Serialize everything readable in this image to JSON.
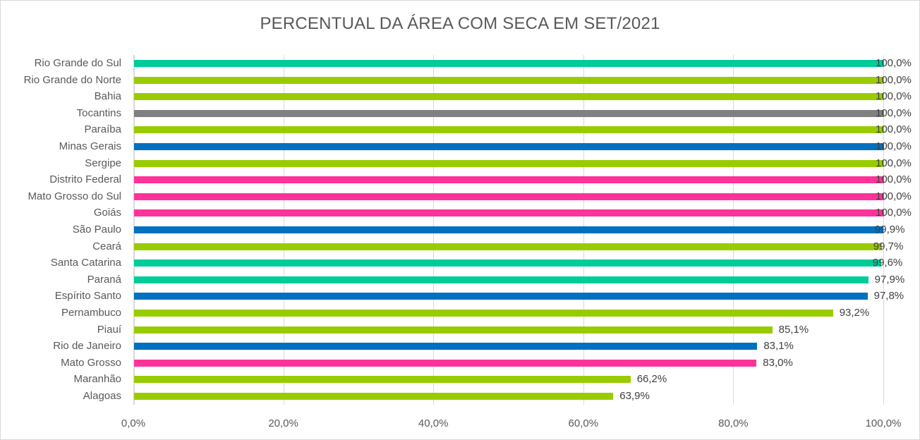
{
  "chart_data": {
    "type": "bar",
    "orientation": "horizontal",
    "title": "PERCENTUAL DA ÁREA COM SECA EM SET/2021",
    "xlabel": "",
    "ylabel": "",
    "xlim": [
      0,
      100
    ],
    "grid": true,
    "legend": null,
    "x_ticks": [
      "0,0%",
      "20,0%",
      "40,0%",
      "60,0%",
      "80,0%",
      "100,0%"
    ],
    "categories": [
      "Rio Grande do Sul",
      "Rio Grande do Norte",
      "Bahia",
      "Tocantins",
      "Paraíba",
      "Minas Gerais",
      "Sergipe",
      "Distrito Federal",
      "Mato Grosso do Sul",
      "Goiás",
      "São Paulo",
      "Ceará",
      "Santa Catarina",
      "Paraná",
      "Espírito Santo",
      "Pernambuco",
      "Piauí",
      "Rio de Janeiro",
      "Mato Grosso",
      "Maranhão",
      "Alagoas"
    ],
    "values": [
      100.0,
      100.0,
      100.0,
      100.0,
      100.0,
      100.0,
      100.0,
      100.0,
      100.0,
      100.0,
      99.9,
      99.7,
      99.6,
      97.9,
      97.8,
      93.2,
      85.1,
      83.1,
      83.0,
      66.2,
      63.9
    ],
    "value_labels": [
      "100,0%",
      "100,0%",
      "100,0%",
      "100,0%",
      "100,0%",
      "100,0%",
      "100,0%",
      "100,0%",
      "100,0%",
      "100,0%",
      "99,9%",
      "99,7%",
      "99,6%",
      "97,9%",
      "97,8%",
      "93,2%",
      "85,1%",
      "83,1%",
      "83,0%",
      "66,2%",
      "63,9%"
    ],
    "bar_colors": [
      "#00cc99",
      "#99cc00",
      "#99cc00",
      "#808080",
      "#99cc00",
      "#0070c0",
      "#99cc00",
      "#ff3399",
      "#ff3399",
      "#ff3399",
      "#0070c0",
      "#99cc00",
      "#00cc99",
      "#00cc99",
      "#0070c0",
      "#99cc00",
      "#99cc00",
      "#0070c0",
      "#ff3399",
      "#99cc00",
      "#99cc00"
    ]
  }
}
